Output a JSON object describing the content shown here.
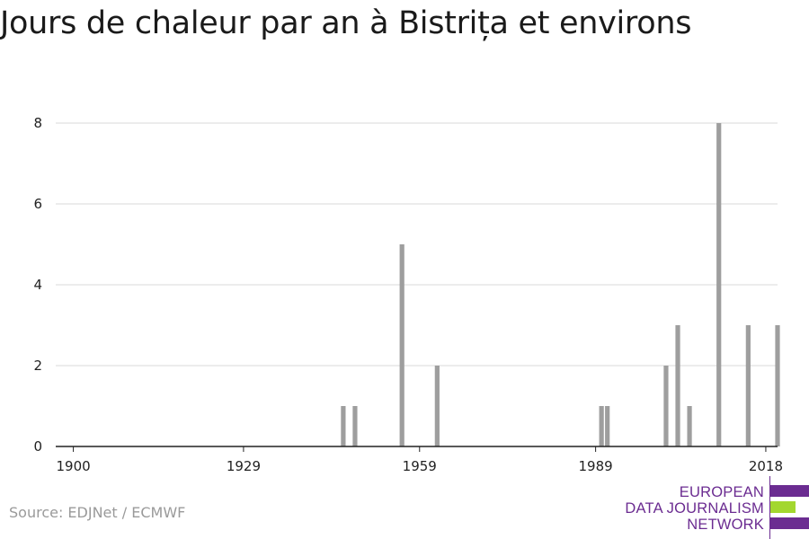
{
  "title": "Jours de chaleur par an à Bistrița et environs",
  "source": "Source: EDJNet / ECMWF",
  "logo": {
    "lines": [
      "EUROPEAN",
      "DATA JOURNALISM",
      "NETWORK"
    ],
    "colors": {
      "purple": "#6b2c91",
      "green": "#a3d72f"
    }
  },
  "colors": {
    "bar": "#9e9e9e",
    "grid": "#d9d9d9",
    "axis": "#222222"
  },
  "chart_data": {
    "type": "bar",
    "title": "Jours de chaleur par an à Bistrița et environs",
    "xlabel": "",
    "ylabel": "",
    "xlim": [
      1897,
      2020
    ],
    "ylim": [
      0,
      8
    ],
    "grid": true,
    "x_ticks": [
      1900,
      1929,
      1959,
      1989,
      2018
    ],
    "y_ticks": [
      0,
      2,
      4,
      6,
      8
    ],
    "series": [
      {
        "x": [
          1946,
          1948,
          1956,
          1962,
          1990,
          1991,
          2001,
          2003,
          2005,
          2010,
          2015,
          2020
        ],
        "values": [
          1,
          1,
          5,
          2,
          1,
          1,
          2,
          3,
          1,
          8,
          3,
          3
        ]
      }
    ]
  }
}
